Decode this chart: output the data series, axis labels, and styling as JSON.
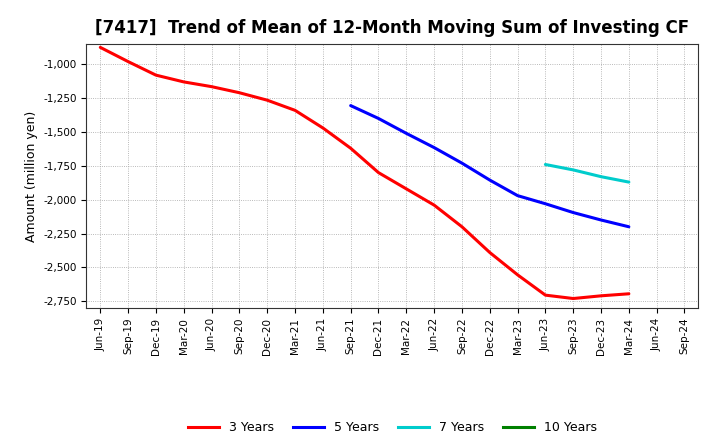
{
  "title": "[7417]  Trend of Mean of 12-Month Moving Sum of Investing CF",
  "ylabel": "Amount (million yen)",
  "background_color": "#ffffff",
  "plot_background": "#ffffff",
  "grid_color": "#999999",
  "title_fontsize": 12,
  "ylabel_fontsize": 9,
  "tick_fontsize": 7.5,
  "ylim": [
    -2800,
    -850
  ],
  "yticks": [
    -2750,
    -2500,
    -2250,
    -2000,
    -1750,
    -1500,
    -1250,
    -1000
  ],
  "series": {
    "3yr": {
      "color": "#ff0000",
      "label": "3 Years",
      "points": [
        [
          "Jun-19",
          -875
        ],
        [
          "Sep-19",
          -980
        ],
        [
          "Dec-19",
          -1080
        ],
        [
          "Mar-20",
          -1130
        ],
        [
          "Jun-20",
          -1165
        ],
        [
          "Sep-20",
          -1210
        ],
        [
          "Dec-20",
          -1265
        ],
        [
          "Mar-21",
          -1340
        ],
        [
          "Jun-21",
          -1470
        ],
        [
          "Sep-21",
          -1620
        ],
        [
          "Dec-21",
          -1800
        ],
        [
          "Mar-22",
          -1920
        ],
        [
          "Jun-22",
          -2040
        ],
        [
          "Sep-22",
          -2200
        ],
        [
          "Dec-22",
          -2390
        ],
        [
          "Mar-23",
          -2555
        ],
        [
          "Jun-23",
          -2705
        ],
        [
          "Sep-23",
          -2730
        ],
        [
          "Dec-23",
          -2710
        ],
        [
          "Mar-24",
          -2695
        ]
      ]
    },
    "5yr": {
      "color": "#0000ff",
      "label": "5 Years",
      "points": [
        [
          "Sep-21",
          -1305
        ],
        [
          "Dec-21",
          -1400
        ],
        [
          "Mar-22",
          -1510
        ],
        [
          "Jun-22",
          -1615
        ],
        [
          "Sep-22",
          -1730
        ],
        [
          "Dec-22",
          -1855
        ],
        [
          "Mar-23",
          -1970
        ],
        [
          "Jun-23",
          -2030
        ],
        [
          "Sep-23",
          -2095
        ],
        [
          "Dec-23",
          -2150
        ],
        [
          "Mar-24",
          -2200
        ]
      ]
    },
    "7yr": {
      "color": "#00cccc",
      "label": "7 Years",
      "points": [
        [
          "Jun-23",
          -1740
        ],
        [
          "Sep-23",
          -1780
        ],
        [
          "Dec-23",
          -1830
        ],
        [
          "Mar-24",
          -1870
        ]
      ]
    },
    "10yr": {
      "color": "#008000",
      "label": "10 Years",
      "points": []
    }
  },
  "xtick_labels": [
    "Jun-19",
    "Sep-19",
    "Dec-19",
    "Mar-20",
    "Jun-20",
    "Sep-20",
    "Dec-20",
    "Mar-21",
    "Jun-21",
    "Sep-21",
    "Dec-21",
    "Mar-22",
    "Jun-22",
    "Sep-22",
    "Dec-22",
    "Mar-23",
    "Jun-23",
    "Sep-23",
    "Dec-23",
    "Mar-24",
    "Jun-24",
    "Sep-24"
  ]
}
